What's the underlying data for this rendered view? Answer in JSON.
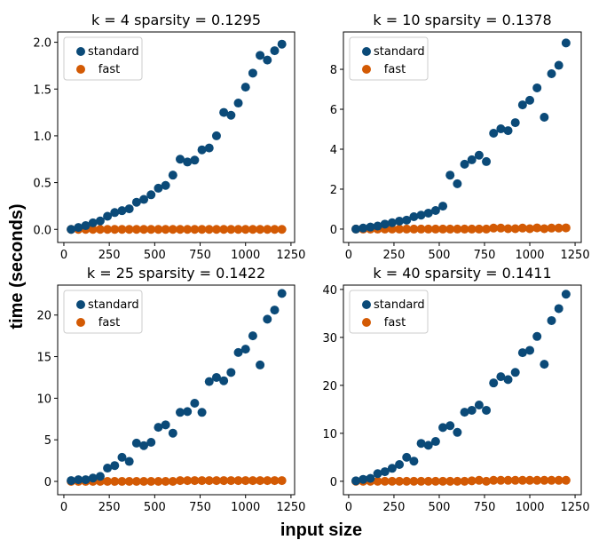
{
  "figure": {
    "ylabel": "time (seconds)",
    "xlabel": "input size"
  },
  "colors": {
    "standard": "#0b4a78",
    "fast": "#d35a04"
  },
  "chart_data": [
    {
      "type": "scatter",
      "title": "k = 4 sparsity = 0.1295",
      "xlim": [
        -34,
        1270
      ],
      "ylim": [
        -0.14,
        2.11
      ],
      "xticks": [
        "0",
        "250",
        "500",
        "750",
        "1000",
        "1250"
      ],
      "xtick_values": [
        0,
        250,
        500,
        750,
        1000,
        1250
      ],
      "yticks": [
        "0.0",
        "0.5",
        "1.0",
        "1.5",
        "2.0"
      ],
      "ytick_values": [
        0,
        0.5,
        1,
        1.5,
        2
      ],
      "legend": "top-left",
      "x": [
        40,
        80,
        120,
        160,
        200,
        240,
        280,
        320,
        360,
        400,
        440,
        480,
        520,
        560,
        600,
        640,
        680,
        720,
        760,
        800,
        840,
        880,
        920,
        960,
        1000,
        1040,
        1080,
        1120,
        1160,
        1200
      ],
      "series": [
        {
          "name": "standard",
          "values": [
            0,
            0.02,
            0.04,
            0.07,
            0.09,
            0.14,
            0.18,
            0.2,
            0.22,
            0.29,
            0.32,
            0.37,
            0.44,
            0.47,
            0.58,
            0.75,
            0.72,
            0.74,
            0.85,
            0.87,
            1.0,
            1.25,
            1.22,
            1.35,
            1.52,
            1.67,
            1.86,
            1.81,
            1.91,
            1.98
          ]
        },
        {
          "name": "fast",
          "values": [
            0,
            0,
            0,
            0,
            0,
            0,
            0,
            0,
            0,
            0,
            0,
            0,
            0,
            0,
            0,
            0,
            0,
            0,
            0,
            0,
            0,
            0,
            0,
            0,
            0,
            0,
            0,
            0,
            0,
            0
          ]
        }
      ]
    },
    {
      "type": "scatter",
      "title": "k = 10 sparsity = 0.1378",
      "xlim": [
        -29,
        1284
      ],
      "ylim": [
        -0.67,
        9.87
      ],
      "xticks": [
        "0",
        "250",
        "500",
        "750",
        "1000",
        "1250"
      ],
      "xtick_values": [
        0,
        250,
        500,
        750,
        1000,
        1250
      ],
      "yticks": [
        "0",
        "2",
        "4",
        "6",
        "8"
      ],
      "ytick_values": [
        0,
        2,
        4,
        6,
        8
      ],
      "legend": "top-left",
      "x": [
        40,
        80,
        120,
        160,
        200,
        240,
        280,
        320,
        360,
        400,
        440,
        480,
        520,
        560,
        600,
        640,
        680,
        720,
        760,
        800,
        840,
        880,
        920,
        960,
        1000,
        1040,
        1080,
        1120,
        1160,
        1200
      ],
      "series": [
        {
          "name": "standard",
          "values": [
            0,
            0.05,
            0.1,
            0.15,
            0.25,
            0.32,
            0.4,
            0.45,
            0.62,
            0.7,
            0.8,
            0.93,
            1.15,
            2.7,
            2.27,
            3.25,
            3.47,
            3.7,
            3.38,
            4.8,
            5.02,
            4.93,
            5.33,
            6.22,
            6.45,
            7.07,
            5.6,
            7.78,
            8.2,
            9.32
          ]
        },
        {
          "name": "fast",
          "values": [
            0,
            0,
            0,
            0,
            0,
            0,
            0,
            0,
            0,
            0,
            0,
            0,
            0,
            0,
            0,
            0,
            0,
            0,
            0,
            0.05,
            0.05,
            0.02,
            0.02,
            0.05,
            0.02,
            0.06,
            0.02,
            0.05,
            0.05,
            0.06
          ]
        }
      ]
    },
    {
      "type": "scatter",
      "title": "k = 25 sparsity = 0.1422",
      "xlim": [
        -34,
        1270
      ],
      "ylim": [
        -1.6,
        23.6
      ],
      "xticks": [
        "0",
        "250",
        "500",
        "750",
        "1000",
        "1250"
      ],
      "xtick_values": [
        0,
        250,
        500,
        750,
        1000,
        1250
      ],
      "yticks": [
        "0",
        "5",
        "10",
        "15",
        "20"
      ],
      "ytick_values": [
        0,
        5,
        10,
        15,
        20
      ],
      "legend": "top-left",
      "x": [
        40,
        80,
        120,
        160,
        200,
        240,
        280,
        320,
        360,
        400,
        440,
        480,
        520,
        560,
        600,
        640,
        680,
        720,
        760,
        800,
        840,
        880,
        920,
        960,
        1000,
        1040,
        1080,
        1120,
        1160,
        1200
      ],
      "series": [
        {
          "name": "standard",
          "values": [
            0.1,
            0.2,
            0.2,
            0.4,
            0.6,
            1.6,
            1.9,
            2.9,
            2.4,
            4.6,
            4.3,
            4.7,
            6.5,
            6.8,
            5.8,
            8.3,
            8.4,
            9.4,
            8.3,
            12.0,
            12.5,
            12.1,
            13.1,
            15.5,
            15.9,
            17.5,
            14.0,
            19.5,
            20.6,
            22.6
          ]
        },
        {
          "name": "fast",
          "values": [
            0,
            0,
            0,
            0,
            0,
            0,
            0,
            0,
            0,
            0,
            0,
            0,
            0,
            0,
            0,
            0.1,
            0.1,
            0.1,
            0.1,
            0.1,
            0.1,
            0.1,
            0.1,
            0.1,
            0.1,
            0.1,
            0.1,
            0.1,
            0.1,
            0.1
          ]
        }
      ]
    },
    {
      "type": "scatter",
      "title": "k = 40 sparsity = 0.1411",
      "xlim": [
        -29,
        1284
      ],
      "ylim": [
        -2.8,
        40.9
      ],
      "xticks": [
        "0",
        "250",
        "500",
        "750",
        "1000",
        "1250"
      ],
      "xtick_values": [
        0,
        250,
        500,
        750,
        1000,
        1250
      ],
      "yticks": [
        "0",
        "10",
        "20",
        "30",
        "40"
      ],
      "ytick_values": [
        0,
        10,
        20,
        30,
        40
      ],
      "legend": "top-left",
      "x": [
        40,
        80,
        120,
        160,
        200,
        240,
        280,
        320,
        360,
        400,
        440,
        480,
        520,
        560,
        600,
        640,
        680,
        720,
        760,
        800,
        840,
        880,
        920,
        960,
        1000,
        1040,
        1080,
        1120,
        1160,
        1200
      ],
      "series": [
        {
          "name": "standard",
          "values": [
            0.1,
            0.4,
            0.6,
            1.6,
            2.0,
            2.7,
            3.5,
            5.0,
            4.2,
            7.9,
            7.5,
            8.3,
            11.2,
            11.6,
            10.2,
            14.4,
            14.8,
            15.9,
            14.8,
            20.5,
            21.8,
            21.2,
            22.7,
            26.8,
            27.3,
            30.2,
            24.4,
            33.5,
            36.0,
            39.0
          ]
        },
        {
          "name": "fast",
          "values": [
            0,
            0,
            0,
            0,
            0,
            0,
            0,
            0,
            0,
            0,
            0,
            0,
            0,
            0,
            0,
            0,
            0.1,
            0.2,
            0,
            0.2,
            0.2,
            0.2,
            0.2,
            0.2,
            0.2,
            0.2,
            0.2,
            0.2,
            0.2,
            0.2
          ]
        }
      ]
    }
  ]
}
